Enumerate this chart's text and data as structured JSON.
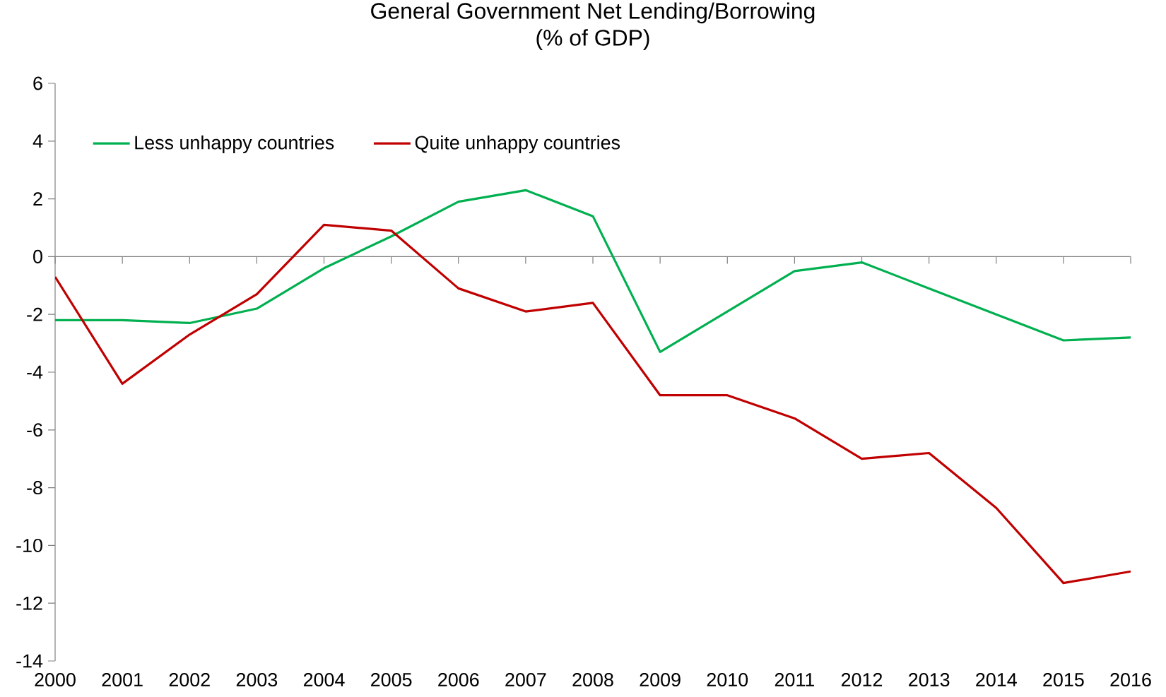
{
  "chart_data": {
    "type": "line",
    "title": "General Government Net Lending/Borrowing",
    "subtitle": "(% of GDP)",
    "categories": [
      "2000",
      "2001",
      "2002",
      "2003",
      "2004",
      "2005",
      "2006",
      "2007",
      "2008",
      "2009",
      "2010",
      "2011",
      "2012",
      "2013",
      "2014",
      "2015",
      "2016"
    ],
    "series": [
      {
        "name": "Less unhappy countries",
        "color": "#00b050",
        "values": [
          -2.2,
          -2.2,
          -2.3,
          -1.8,
          -0.4,
          0.7,
          1.9,
          2.3,
          1.4,
          -3.3,
          -1.9,
          -0.5,
          -0.2,
          -1.1,
          -2.0,
          -2.9,
          -2.8
        ]
      },
      {
        "name": "Quite unhappy countries",
        "color": "#c00000",
        "values": [
          -0.7,
          -4.4,
          -2.7,
          -1.3,
          1.1,
          0.9,
          -1.1,
          -1.9,
          -1.6,
          -4.8,
          -4.8,
          -5.6,
          -7.0,
          -6.8,
          -8.7,
          -11.3,
          -10.9
        ]
      }
    ],
    "ylim": [
      -14,
      6
    ],
    "yticks": [
      -14,
      -12,
      -10,
      -8,
      -6,
      -4,
      -2,
      0,
      2,
      4,
      6
    ],
    "legend": "top left"
  }
}
